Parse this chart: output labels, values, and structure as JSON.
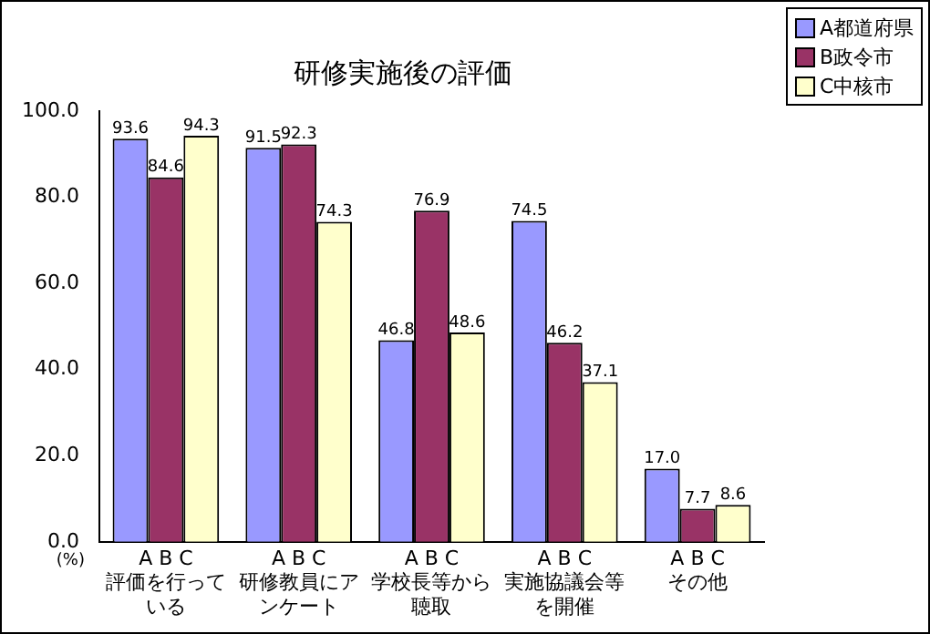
{
  "chart_data": {
    "type": "bar",
    "title": "研修実施後の評価",
    "ylabel": "(%)",
    "categories": [
      "評価を行っている",
      "研修教員にアンケート",
      "学校長等から聴取",
      "実施協議会等を開催",
      "その他"
    ],
    "annotations": [
      "A B C",
      "A B C",
      "A B C",
      "A B C",
      "A B C"
    ],
    "series": [
      {
        "name": "A都道府県",
        "color": "#9999ff",
        "values": [
          93.6,
          91.5,
          46.8,
          74.5,
          17.0
        ],
        "value_labels": [
          "93.6",
          "91.5",
          "46.8",
          "74.5",
          "17.0"
        ]
      },
      {
        "name": "B政令市",
        "color": "#993366",
        "values": [
          84.6,
          92.3,
          76.9,
          46.2,
          7.7
        ],
        "value_labels": [
          "84.6",
          "92.3",
          "76.9",
          "46.2",
          "7.7"
        ]
      },
      {
        "name": "C中核市",
        "color": "#ffffcc",
        "values": [
          94.3,
          74.3,
          48.6,
          37.1,
          8.6
        ],
        "value_labels": [
          "94.3",
          "74.3",
          "48.6",
          "37.1",
          "8.6"
        ]
      }
    ],
    "ylim": [
      0,
      100
    ],
    "yticks": [
      {
        "value": 0,
        "label": "0.0"
      },
      {
        "value": 20,
        "label": "20.0"
      },
      {
        "value": 40,
        "label": "40.0"
      },
      {
        "value": 60,
        "label": "60.0"
      },
      {
        "value": 80,
        "label": "80.0"
      },
      {
        "value": 100,
        "label": "100.0"
      }
    ],
    "grid": false,
    "legend": "top right"
  }
}
